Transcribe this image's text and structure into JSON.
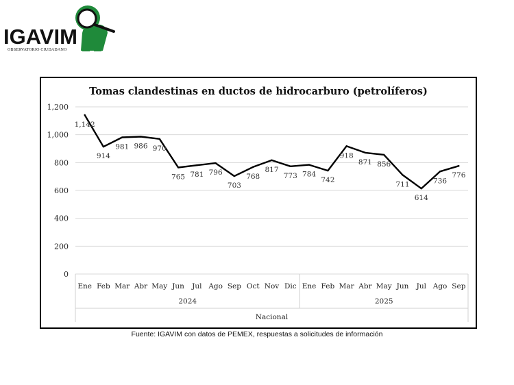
{
  "logo": {
    "name": "IGAVIM",
    "subtitle": "OBSERVATORIO CIUDADANO",
    "colors": {
      "green": "#1f8a3a",
      "dark": "#111111"
    }
  },
  "caption": "Fuente: IGAVIM con datos de PEMEX, respuestas a solicitudes de información",
  "chart_data": {
    "type": "line",
    "title": "Tomas clandestinas en ductos de hidrocarburo (petrolíferos)",
    "categories": [
      "Ene",
      "Feb",
      "Mar",
      "Abr",
      "May",
      "Jun",
      "Jul",
      "Ago",
      "Sep",
      "Oct",
      "Nov",
      "Dic",
      "Ene",
      "Feb",
      "Mar",
      "Abr",
      "May",
      "Jun",
      "Jul",
      "Ago",
      "Sep"
    ],
    "groups": [
      {
        "label": "2024",
        "count": 12
      },
      {
        "label": "2025",
        "count": 9
      }
    ],
    "outer_group_label": "Nacional",
    "series": [
      {
        "name": "Nacional",
        "values": [
          1142,
          914,
          981,
          986,
          970,
          765,
          781,
          796,
          703,
          768,
          817,
          773,
          784,
          742,
          918,
          871,
          856,
          711,
          614,
          736,
          776
        ],
        "labels": [
          "1,142",
          "914",
          "981",
          "986",
          "970",
          "765",
          "781",
          "796",
          "703",
          "768",
          "817",
          "773",
          "784",
          "742",
          "918",
          "871",
          "856",
          "711",
          "614",
          "736",
          "776"
        ]
      }
    ],
    "y_ticks": [
      0,
      200,
      400,
      600,
      800,
      1000,
      1200
    ],
    "y_tick_labels": [
      "0",
      "200",
      "400",
      "600",
      "800",
      "1,000",
      "1,200"
    ],
    "ylim": [
      0,
      1200
    ],
    "grid": true,
    "line_color": "#000000"
  }
}
